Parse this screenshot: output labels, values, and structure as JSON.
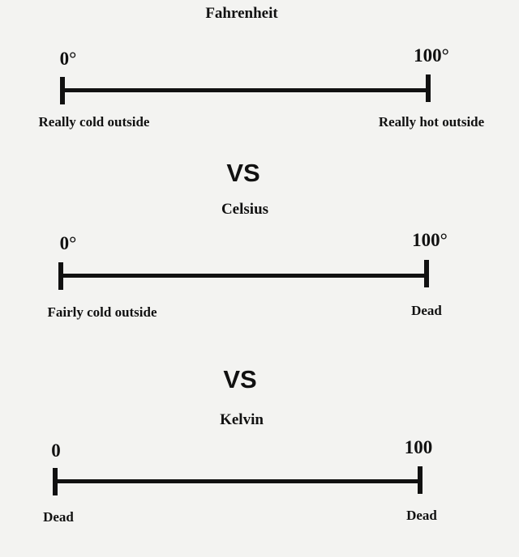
{
  "scales": [
    {
      "title": "Fahrenheit",
      "min_label": "0°",
      "max_label": "100°",
      "min_desc": "Really cold outside",
      "max_desc": "Really hot outside"
    },
    {
      "title": "Celsius",
      "min_label": "0°",
      "max_label": "100°",
      "min_desc": "Fairly cold outside",
      "max_desc": "Dead"
    },
    {
      "title": "Kelvin",
      "min_label": "0",
      "max_label": "100",
      "min_desc": "Dead",
      "max_desc": "Dead"
    }
  ],
  "separator": "VS"
}
